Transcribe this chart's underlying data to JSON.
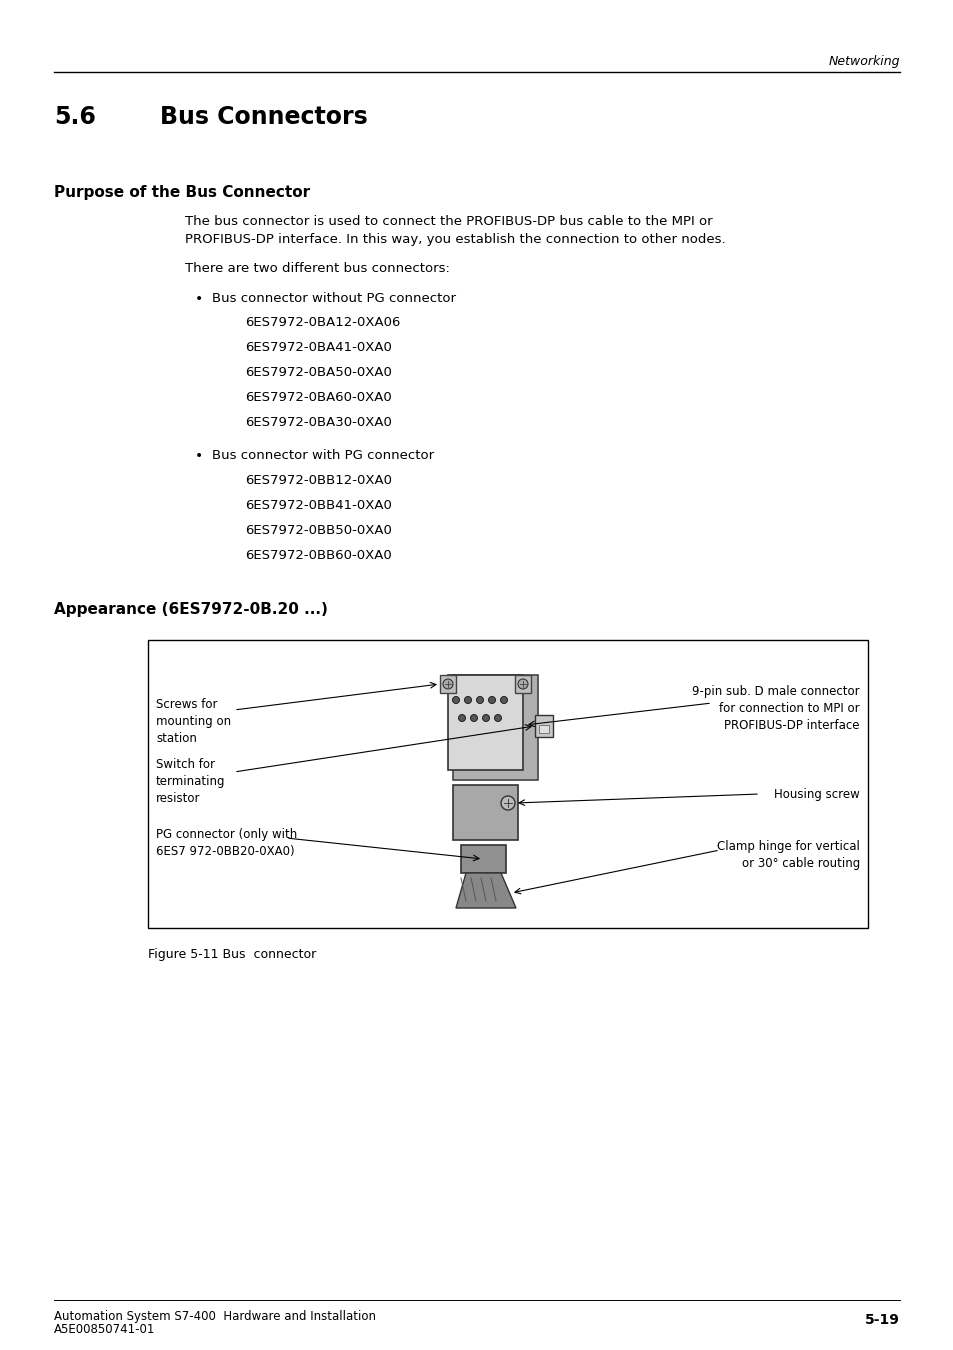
{
  "header_right": "Networking",
  "section_number": "5.6",
  "section_title": "Bus Connectors",
  "subsection1_title": "Purpose of the Bus Connector",
  "paragraph1_line1": "The bus connector is used to connect the PROFIBUS-DP bus cable to the MPI or",
  "paragraph1_line2": "PROFIBUS-DP interface. In this way, you establish the connection to other nodes.",
  "paragraph2": "There are two different bus connectors:",
  "bullet1_text": "Bus connector without PG connector",
  "bullet1_items": [
    "6ES7972-0BA12-0XA06",
    "6ES7972-0BA41-0XA0",
    "6ES7972-0BA50-0XA0",
    "6ES7972-0BA60-0XA0",
    "6ES7972-0BA30-0XA0"
  ],
  "bullet2_text": "Bus connector with PG connector",
  "bullet2_items": [
    "6ES7972-0BB12-0XA0",
    "6ES7972-0BB41-0XA0",
    "6ES7972-0BB50-0XA0",
    "6ES7972-0BB60-0XA0"
  ],
  "subsection2_title": "Appearance (6ES7972-0B.20 ...)",
  "figure_caption": "Figure 5-11 Bus  connector",
  "footer_left1": "Automation System S7-400  Hardware and Installation",
  "footer_left2": "A5E00850741-01",
  "footer_right": "5-19",
  "bg_color": "#ffffff",
  "text_color": "#000000"
}
